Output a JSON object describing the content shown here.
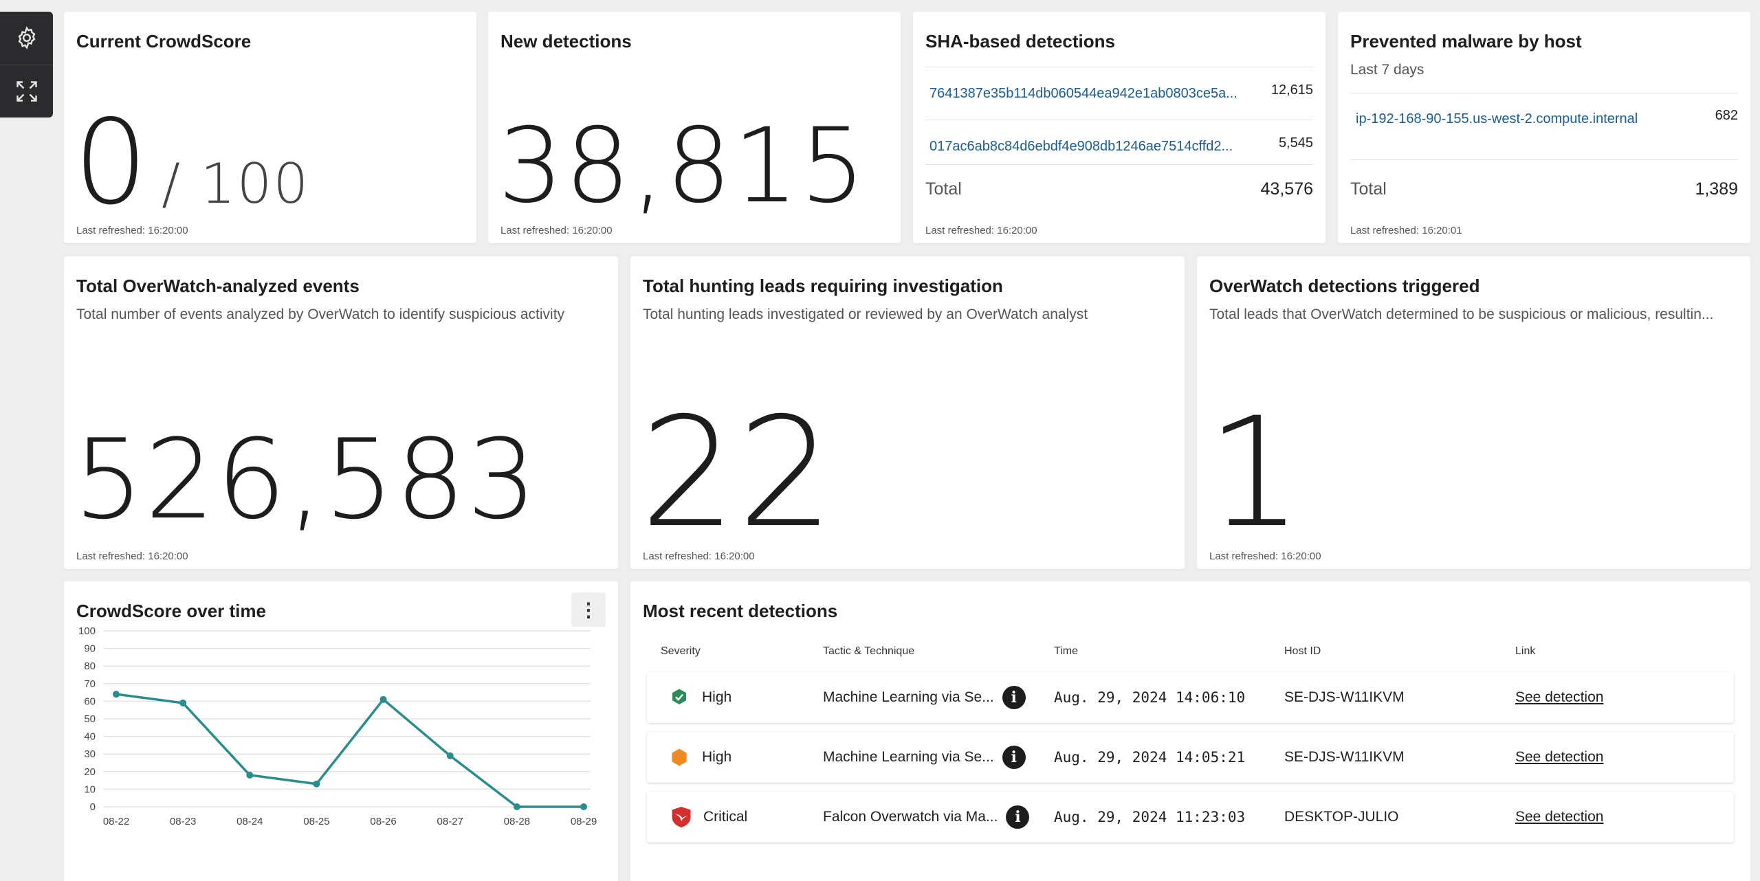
{
  "cards": {
    "crowdscore": {
      "title": "Current CrowdScore",
      "value": "0",
      "max": "/ 100",
      "refreshed": "Last refreshed: 16:20:00"
    },
    "new_detections": {
      "title": "New detections",
      "value": "38,815",
      "refreshed": "Last refreshed: 16:20:00"
    },
    "sha": {
      "title": "SHA-based detections",
      "rows": [
        {
          "hash": "7641387e35b114db060544ea942e1ab0803ce5a...",
          "count": "12,615"
        },
        {
          "hash": "017ac6ab8c84d6ebdf4e908db1246ae7514cffd2...",
          "count": "5,545"
        }
      ],
      "total_label": "Total",
      "total": "43,576",
      "refreshed": "Last refreshed: 16:20:00"
    },
    "malware": {
      "title": "Prevented malware by host",
      "subtitle": "Last 7 days",
      "rows": [
        {
          "host": "ip-192-168-90-155.us-west-2.compute.internal",
          "count": "682"
        }
      ],
      "total_label": "Total",
      "total": "1,389",
      "refreshed": "Last refreshed: 16:20:01"
    },
    "overwatch_events": {
      "title": "Total OverWatch-analyzed events",
      "subtitle": "Total number of events analyzed by OverWatch to identify suspicious activity",
      "value": "526,583",
      "refreshed": "Last refreshed: 16:20:00"
    },
    "hunting_leads": {
      "title": "Total hunting leads requiring investigation",
      "subtitle": "Total hunting leads investigated or reviewed by an OverWatch analyst",
      "value": "22",
      "refreshed": "Last refreshed: 16:20:00"
    },
    "overwatch_triggered": {
      "title": "OverWatch detections triggered",
      "subtitle": "Total leads that OverWatch determined to be suspicious or malicious, resultin...",
      "value": "1",
      "refreshed": "Last refreshed: 16:20:00"
    },
    "crowdscore_time": {
      "title": "CrowdScore over time",
      "menu": "⋮"
    },
    "recent": {
      "title": "Most recent detections",
      "headers": {
        "severity": "Severity",
        "tactic": "Tactic & Technique",
        "time": "Time",
        "host": "Host ID",
        "link": "Link"
      },
      "rows": [
        {
          "severity": "High",
          "severity_icon": "shield-check-icon",
          "color": "#2e8b57",
          "tactic": "Machine Learning via Se...",
          "time": "Aug. 29, 2024 14:06:10",
          "host": "SE-DJS-W11IKVM",
          "link": "See detection"
        },
        {
          "severity": "High",
          "severity_icon": "hexagon-icon",
          "color": "#f08a24",
          "tactic": "Machine Learning via Se...",
          "time": "Aug. 29, 2024 14:05:21",
          "host": "SE-DJS-W11IKVM",
          "link": "See detection"
        },
        {
          "severity": "Critical",
          "severity_icon": "falcon-shield-icon",
          "color": "#d32f2f",
          "tactic": "Falcon Overwatch via Ma...",
          "time": "Aug. 29, 2024 11:23:03",
          "host": "DESKTOP-JULIO",
          "link": "See detection"
        }
      ]
    }
  },
  "toolbar": {
    "icons": [
      "gear-icon",
      "expand-icon"
    ]
  },
  "chart_data": {
    "type": "line",
    "categories": [
      "08-22",
      "08-23",
      "08-24",
      "08-25",
      "08-26",
      "08-27",
      "08-28",
      "08-29"
    ],
    "series": [
      {
        "values": [
          64,
          59,
          18,
          13,
          61,
          29,
          0,
          0
        ],
        "color": "#2a8c8c"
      }
    ],
    "yticks": [
      "0",
      "10",
      "20",
      "30",
      "40",
      "50",
      "60",
      "70",
      "80",
      "90",
      "100"
    ],
    "ylim": [
      0,
      100
    ],
    "grid": true,
    "title": "",
    "xlabel": "",
    "ylabel": ""
  }
}
